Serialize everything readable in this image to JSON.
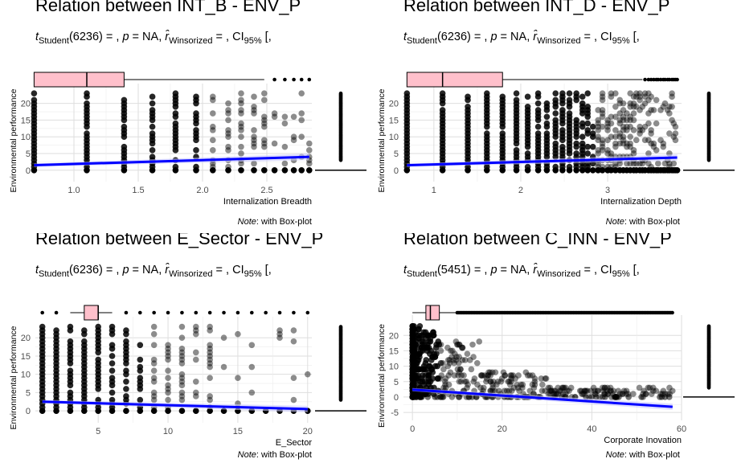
{
  "chart_data": [
    {
      "type": "scatter",
      "title": "Relation between INT_B - ENV_P",
      "subtitle": {
        "stat_name": "Student",
        "df": "(6236)",
        "rest": " = , p = NA, ",
        "r_sub": "Winsorized",
        "ci_sub": "95%",
        "tail": " = , CI",
        "end": " [,"
      },
      "xlabel": "Internalization Breadth",
      "ylabel": "Environmental performance",
      "xlim": [
        0.7,
        2.85
      ],
      "ylim": [
        -1.5,
        24
      ],
      "xticks": [
        1.0,
        1.5,
        2.0,
        2.5
      ],
      "xtick_labels": [
        "1.0",
        "1.5",
        "2.0",
        "2.5"
      ],
      "yticks": [
        0,
        5,
        10,
        15,
        20
      ],
      "ytick_labels": [
        "0",
        "5",
        "10",
        "15",
        "20"
      ],
      "x_levels": [
        0.69,
        1.1,
        1.39,
        1.61,
        1.79,
        1.95,
        2.08,
        2.2,
        2.3,
        2.4,
        2.48,
        2.56,
        2.64,
        2.71,
        2.77,
        2.83
      ],
      "regression": {
        "x": [
          0.69,
          2.83
        ],
        "y": [
          1.5,
          4.0
        ]
      },
      "x_box": {
        "q1": 0.69,
        "median": 1.1,
        "q3": 1.39,
        "whisker_hi": 2.48,
        "outliers": [
          2.56,
          2.64,
          2.71,
          2.77,
          2.83
        ]
      },
      "y_box": {
        "median": 0,
        "outliers_from": 3,
        "outliers_to": 23
      },
      "grid": true,
      "note": "Note: with Box-plot"
    },
    {
      "type": "scatter",
      "title": "Relation between INT_D - ENV_P",
      "subtitle": {
        "stat_name": "Student",
        "df": "(6236)",
        "rest": " = , p = NA, ",
        "r_sub": "Winsorized",
        "ci_sub": "95%",
        "tail": " = , CI",
        "end": " [,"
      },
      "xlabel": "Internalization Depth",
      "ylabel": "Environmental performance",
      "xlim": [
        0.65,
        3.85
      ],
      "ylim": [
        -1.5,
        24
      ],
      "xticks": [
        1,
        2,
        3
      ],
      "xtick_labels": [
        "1",
        "2",
        "3"
      ],
      "yticks": [
        0,
        5,
        10,
        15,
        20
      ],
      "ytick_labels": [
        "0",
        "5",
        "10",
        "15",
        "20"
      ],
      "x_levels": [
        0.69,
        1.1,
        1.39,
        1.61,
        1.79,
        1.95,
        2.08,
        2.2,
        2.3,
        2.4,
        2.48,
        2.56,
        2.64,
        2.71,
        2.77,
        2.83,
        2.89,
        2.94,
        3.0,
        3.04,
        3.09,
        3.14,
        3.18,
        3.22,
        3.26,
        3.3,
        3.33,
        3.37,
        3.4,
        3.43,
        3.47,
        3.5,
        3.53,
        3.56,
        3.58,
        3.61,
        3.64,
        3.66,
        3.69,
        3.71,
        3.74,
        3.76,
        3.78,
        3.8
      ],
      "regression": {
        "x": [
          0.69,
          3.8
        ],
        "y": [
          1.5,
          3.8
        ]
      },
      "x_box": {
        "q1": 0.69,
        "median": 1.1,
        "q3": 1.79,
        "whisker_hi": 3.4,
        "outliers": [
          3.43,
          3.47,
          3.5,
          3.53,
          3.56,
          3.58,
          3.61,
          3.64,
          3.66,
          3.69,
          3.71,
          3.74,
          3.76,
          3.78,
          3.8
        ]
      },
      "y_box": {
        "median": 0,
        "outliers_from": 3,
        "outliers_to": 23
      },
      "grid": true,
      "note": "Note: with Box-plot"
    },
    {
      "type": "scatter",
      "title": "Relation between E_Sector - ENV_P",
      "subtitle": {
        "stat_name": "Student",
        "df": "(6236)",
        "rest": " = , p = NA, ",
        "r_sub": "Winsorized",
        "ci_sub": "95%",
        "tail": " = , CI",
        "end": " [,"
      },
      "xlabel": "E_Sector",
      "ylabel": "Environmental performance",
      "xlim": [
        0.5,
        20.3
      ],
      "ylim": [
        -1.5,
        24
      ],
      "xticks": [
        5,
        10,
        15,
        20
      ],
      "xtick_labels": [
        "5",
        "10",
        "15",
        "20"
      ],
      "yticks": [
        0,
        5,
        10,
        15,
        20
      ],
      "ytick_labels": [
        "0",
        "5",
        "10",
        "15",
        "20"
      ],
      "x_levels": [
        1,
        2,
        3,
        4,
        5,
        6,
        7,
        8,
        9,
        10,
        11,
        12,
        13,
        14,
        15,
        16,
        17,
        18,
        19,
        20
      ],
      "regression": {
        "x": [
          1,
          20
        ],
        "y": [
          2.5,
          0.5
        ]
      },
      "x_box": {
        "q1": 4,
        "median": 5,
        "q3": 5,
        "whisker_hi": 6,
        "whisker_lo": 3,
        "outliers": [
          1,
          2,
          7,
          8,
          9,
          10,
          11,
          12,
          13,
          14,
          15,
          16,
          17,
          18,
          19,
          20
        ]
      },
      "y_box": {
        "median": 0,
        "outliers_from": 3,
        "outliers_to": 23
      },
      "grid": true,
      "note": "Note: with Box-plot"
    },
    {
      "type": "scatter",
      "title": "Relation between C_INN - ENV_P",
      "subtitle": {
        "stat_name": "Student",
        "df": "(5451)",
        "rest": " = , p = NA, ",
        "r_sub": "Winsorized",
        "ci_sub": "95%",
        "tail": " = , CI",
        "end": " [,"
      },
      "xlabel": "Corporate Inovation",
      "ylabel": "Environmental performance",
      "xlim": [
        -2,
        60
      ],
      "ylim": [
        -5.5,
        24.5
      ],
      "xticks": [
        0,
        20,
        40,
        60
      ],
      "xtick_labels": [
        "0",
        "20",
        "40",
        "60"
      ],
      "yticks": [
        -5,
        0,
        5,
        10,
        15,
        20
      ],
      "ytick_labels": [
        "-5",
        "0",
        "5",
        "10",
        "15",
        "20"
      ],
      "regression": {
        "x": [
          0,
          58
        ],
        "y": [
          2.4,
          -3.2
        ]
      },
      "x_box": {
        "q1": 3,
        "median": 4,
        "q3": 6,
        "whisker_hi": 10,
        "whisker_lo": 0,
        "outliers_range": [
          10,
          58
        ]
      },
      "y_box": {
        "median": 0,
        "outliers_from": 3,
        "outliers_to": 23
      },
      "grid": true,
      "note": "Note: with Box-plot"
    }
  ]
}
